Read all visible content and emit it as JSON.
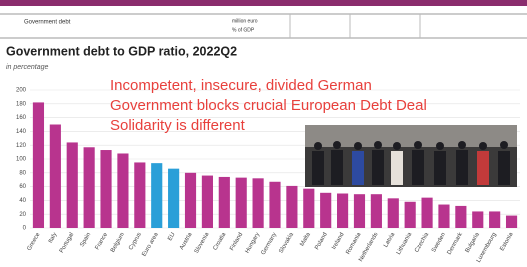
{
  "top_row": {
    "label": "Government debt",
    "units": [
      "million euro",
      "% of GDP"
    ]
  },
  "chart_data": {
    "type": "bar",
    "title": "Government debt to GDP ratio, 2022Q2",
    "subtitle": "in percentage",
    "categories": [
      "Greece",
      "Italy",
      "Portugal",
      "Spain",
      "France",
      "Belgium",
      "Cyprus",
      "Euro area",
      "EU",
      "Austria",
      "Slovenia",
      "Croatia",
      "Finland",
      "Hungary",
      "Germany",
      "Slovakia",
      "Malta",
      "Poland",
      "Ireland",
      "Romania",
      "Netherlands",
      "Latvia",
      "Lithuania",
      "Czechia",
      "Sweden",
      "Denmark",
      "Bulgaria",
      "Luxembourg",
      "Estonia"
    ],
    "values": [
      182,
      150,
      124,
      117,
      113,
      108,
      95,
      94,
      86,
      80,
      76,
      74,
      73,
      72,
      67,
      61,
      57,
      51,
      50,
      49,
      49,
      43,
      38,
      44,
      34,
      32,
      24,
      24,
      18
    ],
    "colors": [
      "#b8348e",
      "#b8348e",
      "#b8348e",
      "#b8348e",
      "#b8348e",
      "#b8348e",
      "#b8348e",
      "#2a9fd8",
      "#2a9fd8",
      "#b8348e",
      "#b8348e",
      "#b8348e",
      "#b8348e",
      "#b8348e",
      "#b8348e",
      "#b8348e",
      "#b8348e",
      "#b8348e",
      "#b8348e",
      "#b8348e",
      "#b8348e",
      "#b8348e",
      "#b8348e",
      "#b8348e",
      "#b8348e",
      "#b8348e",
      "#b8348e",
      "#b8348e",
      "#b8348e"
    ],
    "ylim": [
      0,
      200
    ],
    "yticks": [
      0,
      20,
      40,
      60,
      80,
      100,
      120,
      140,
      160,
      180,
      200
    ],
    "grid": true,
    "annotations": [
      "Incompetent, insecure, divided German",
      "Government blocks crucial European Debt Deal",
      "Solidarity is different"
    ]
  }
}
